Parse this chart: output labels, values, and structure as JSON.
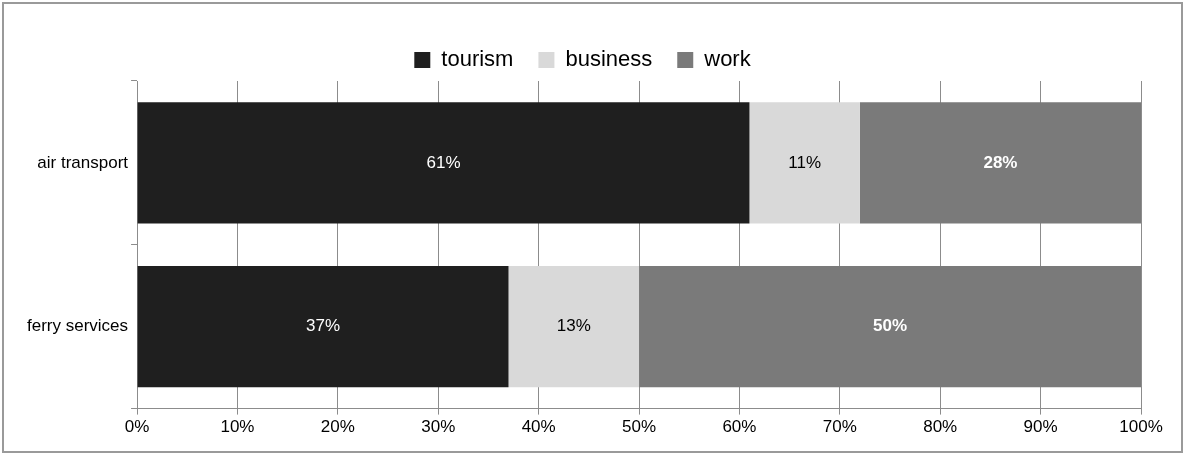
{
  "chart_data": {
    "type": "bar",
    "orientation": "horizontal",
    "stacked": true,
    "categories": [
      "air transport",
      "ferry services"
    ],
    "series": [
      {
        "name": "tourism",
        "color": "#1f1f1f",
        "values": [
          61,
          37
        ],
        "value_labels": [
          "61%",
          "37%"
        ]
      },
      {
        "name": "business",
        "color": "#d9d9d9",
        "values": [
          11,
          13
        ],
        "value_labels": [
          "11%",
          "13%"
        ]
      },
      {
        "name": "work",
        "color": "#7a7a7a",
        "values": [
          28,
          50
        ],
        "value_labels": [
          "28%",
          "50%"
        ]
      }
    ],
    "xlim": [
      0,
      100
    ],
    "xticks": [
      {
        "value": 0,
        "label": "0%"
      },
      {
        "value": 10,
        "label": "10%"
      },
      {
        "value": 20,
        "label": "20%"
      },
      {
        "value": 30,
        "label": "30%"
      },
      {
        "value": 40,
        "label": "40%"
      },
      {
        "value": 50,
        "label": "50%"
      },
      {
        "value": 60,
        "label": "60%"
      },
      {
        "value": 70,
        "label": "70%"
      },
      {
        "value": 80,
        "label": "80%"
      },
      {
        "value": 90,
        "label": "90%"
      },
      {
        "value": 100,
        "label": "100%"
      }
    ],
    "grid": "x",
    "legend": "top"
  }
}
